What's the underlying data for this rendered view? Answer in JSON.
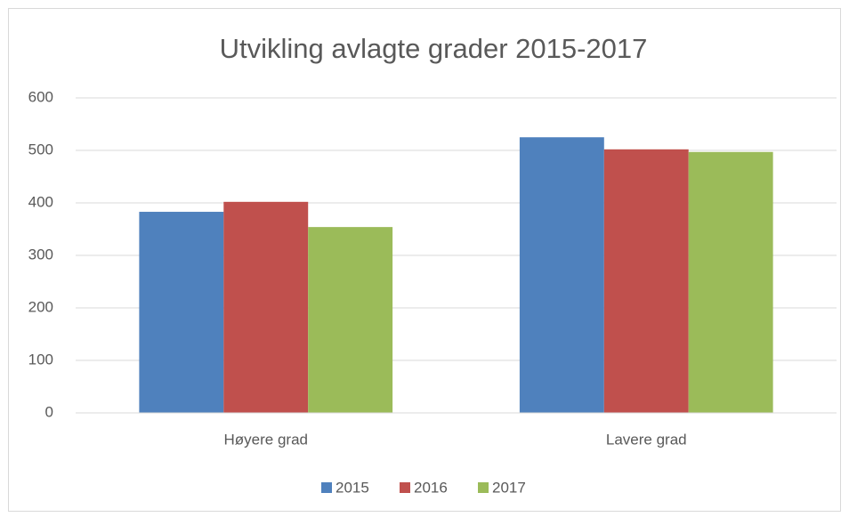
{
  "chart_data": {
    "type": "bar",
    "title": "Utvikling avlagte grader 2015-2017",
    "categories": [
      "Høyere grad",
      "Lavere grad"
    ],
    "series": [
      {
        "name": "2015",
        "color": "#4f81bd",
        "values": [
          383,
          525
        ]
      },
      {
        "name": "2016",
        "color": "#c0504d",
        "values": [
          402,
          502
        ]
      },
      {
        "name": "2017",
        "color": "#9bbb59",
        "values": [
          354,
          497
        ]
      }
    ],
    "ylim": [
      0,
      600
    ],
    "yticks": [
      0,
      100,
      200,
      300,
      400,
      500,
      600
    ],
    "grid": true,
    "legend": "bottom"
  }
}
